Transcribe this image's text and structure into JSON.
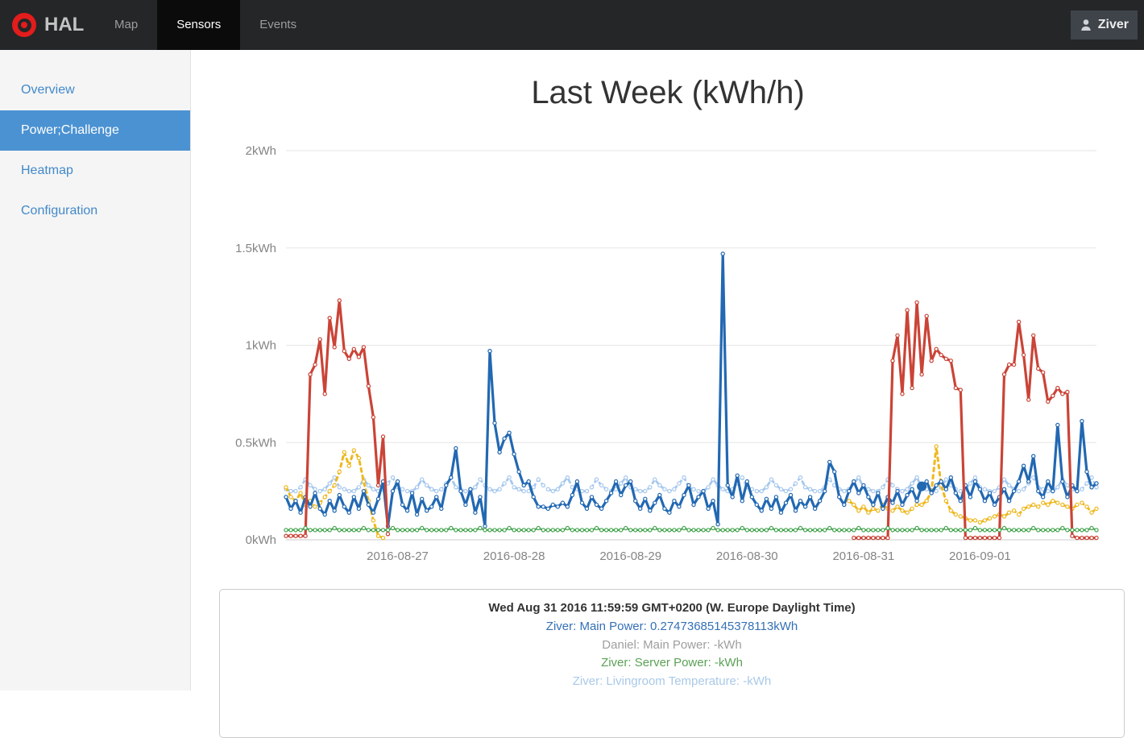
{
  "navbar": {
    "brand": "HAL",
    "items": [
      {
        "label": "Map",
        "active": false
      },
      {
        "label": "Sensors",
        "active": true
      },
      {
        "label": "Events",
        "active": false
      }
    ],
    "user": {
      "label": "Ziver"
    }
  },
  "sidebar": {
    "items": [
      {
        "label": "Overview",
        "active": false
      },
      {
        "label": "Power;Challenge",
        "active": true
      },
      {
        "label": "Heatmap",
        "active": false
      },
      {
        "label": "Configuration",
        "active": false
      }
    ]
  },
  "chart_data": {
    "type": "line",
    "title": "Last Week (kWh/h)",
    "xlabel": "",
    "ylabel": "",
    "grid": true,
    "legend_position": "none",
    "ylim": [
      0,
      2
    ],
    "y_ticks": [
      "0kWh",
      "0.5kWh",
      "1kWh",
      "1.5kWh",
      "2kWh"
    ],
    "y_tick_values": [
      0,
      0.5,
      1,
      1.5,
      2
    ],
    "x_tick_labels": [
      "2016-08-27",
      "2016-08-28",
      "2016-08-29",
      "2016-08-30",
      "2016-08-31",
      "2016-09-01"
    ],
    "x_tick_hours": [
      23,
      47,
      71,
      95,
      119,
      143
    ],
    "hours_total": 168,
    "x_unit": "hour",
    "draw_order": [
      3,
      4,
      0,
      1,
      2
    ],
    "highlight": {
      "series_index": 0,
      "hour": 131,
      "value": 0.27473685145378113
    },
    "series": [
      {
        "name": "Ziver: Main Power",
        "color": "#2268b2",
        "line": "solid",
        "width": 3.2,
        "segments": [
          {
            "start": 0,
            "values": [
              0.22,
              0.16,
              0.2,
              0.14,
              0.22,
              0.17,
              0.24,
              0.16,
              0.13,
              0.2,
              0.15,
              0.23,
              0.17,
              0.14,
              0.22,
              0.16,
              0.25,
              0.18,
              0.14,
              0.21,
              0.3,
              0.07,
              0.25,
              0.3,
              0.18,
              0.15,
              0.24,
              0.13,
              0.21,
              0.15,
              0.17,
              0.22,
              0.16,
              0.28,
              0.32,
              0.47,
              0.25,
              0.18,
              0.26,
              0.14,
              0.22,
              0.07,
              0.97,
              0.6,
              0.45,
              0.52,
              0.55,
              0.44,
              0.35,
              0.28,
              0.3,
              0.22,
              0.17,
              0.17,
              0.16,
              0.18,
              0.17,
              0.19,
              0.17,
              0.23,
              0.3,
              0.19,
              0.16,
              0.22,
              0.18,
              0.16,
              0.2,
              0.24,
              0.3,
              0.23,
              0.28,
              0.3,
              0.2,
              0.16,
              0.21,
              0.15,
              0.19,
              0.23,
              0.16,
              0.14,
              0.2,
              0.17,
              0.23,
              0.28,
              0.18,
              0.22,
              0.25,
              0.16,
              0.2,
              0.08,
              1.47,
              0.28,
              0.22,
              0.33,
              0.2,
              0.3,
              0.22,
              0.18,
              0.15,
              0.21,
              0.16,
              0.22,
              0.14,
              0.19,
              0.23,
              0.15,
              0.2,
              0.17,
              0.22,
              0.16,
              0.2,
              0.25,
              0.4,
              0.35,
              0.22,
              0.18,
              0.25,
              0.3,
              0.24,
              0.28,
              0.22,
              0.18,
              0.24,
              0.16,
              0.22,
              0.19,
              0.25,
              0.18,
              0.23,
              0.26,
              0.2,
              0.2747,
              0.3,
              0.24,
              0.28,
              0.3,
              0.26,
              0.32,
              0.24,
              0.2,
              0.28,
              0.22,
              0.3,
              0.26,
              0.2,
              0.24,
              0.18,
              0.22,
              0.26,
              0.2,
              0.25,
              0.3,
              0.38,
              0.3,
              0.43,
              0.25,
              0.22,
              0.3,
              0.25,
              0.59,
              0.3,
              0.22,
              0.28,
              0.25,
              0.61,
              0.35,
              0.27,
              0.29
            ]
          }
        ]
      },
      {
        "name": "Daniel: Main Power",
        "color": "#ca4437",
        "line": "solid",
        "width": 3.2,
        "segments": [
          {
            "start": 0,
            "values": [
              0.02,
              0.02,
              0.02,
              0.02,
              0.02,
              0.85,
              0.9,
              1.03,
              0.75,
              1.14,
              0.99,
              1.23,
              0.97,
              0.93,
              0.98,
              0.94,
              0.99,
              0.79,
              0.63,
              0.28,
              0.53,
              0.03
            ]
          },
          {
            "start": 117,
            "values": [
              0.01,
              0.01,
              0.01,
              0.01,
              0.01,
              0.01,
              0.01,
              0.01,
              0.92,
              1.05,
              0.75,
              1.18,
              0.78,
              1.22,
              0.85,
              1.15,
              0.92,
              0.98,
              0.95,
              0.93,
              0.92,
              0.78,
              0.77,
              0.01,
              0.01,
              0.01,
              0.01,
              0.01,
              0.01,
              0.01,
              0.01,
              0.85,
              0.9,
              0.9,
              1.12,
              0.95,
              0.72,
              1.05,
              0.88,
              0.86,
              0.71,
              0.74,
              0.78,
              0.75,
              0.76,
              0.02,
              0.01,
              0.01,
              0.01,
              0.01,
              0.01
            ]
          }
        ]
      },
      {
        "name": "Ziver: Server Power",
        "color": "#44a44e",
        "line": "solid",
        "width": 2.2,
        "segments": [
          {
            "start": 0,
            "pattern": [
              0.05,
              0.05,
              0.05,
              0.05,
              0.06,
              0.05
            ],
            "repeat": 28
          }
        ]
      },
      {
        "name": "Ziver: Livingroom Temperature",
        "color": "#a6c8ee",
        "line": "dashed",
        "width": 2.8,
        "segments": [
          {
            "start": 0,
            "pattern": [
              0.26,
              0.25,
              0.25,
              0.27,
              0.31,
              0.28,
              0.26,
              0.25,
              0.26,
              0.29,
              0.32,
              0.27
            ],
            "repeat": 14
          }
        ]
      },
      {
        "name": "",
        "color": "#eeb81e",
        "line": "dashed",
        "width": 3,
        "segments": [
          {
            "start": 0,
            "values": [
              0.27,
              0.22,
              0.2,
              0.24,
              0.18,
              0.2,
              0.17,
              0.19,
              0.22,
              0.25,
              0.28,
              0.35,
              0.45,
              0.38,
              0.46,
              0.42,
              0.3,
              0.2,
              0.1,
              0.02,
              0.01
            ]
          },
          {
            "start": 116,
            "values": [
              0.2,
              0.18,
              0.15,
              0.17,
              0.14,
              0.16,
              0.15,
              0.18,
              0.16,
              0.15,
              0.17,
              0.15,
              0.14,
              0.16,
              0.18,
              0.18,
              0.2,
              0.25,
              0.48,
              0.28,
              0.2,
              0.15,
              0.13,
              0.12,
              0.11,
              0.1,
              0.1,
              0.09,
              0.1,
              0.11,
              0.12,
              0.13,
              0.12,
              0.14,
              0.15,
              0.13,
              0.16,
              0.17,
              0.18,
              0.17,
              0.19,
              0.18,
              0.2,
              0.19,
              0.18,
              0.17,
              0.16,
              0.18,
              0.19,
              0.17,
              0.14,
              0.16
            ]
          }
        ]
      }
    ]
  },
  "tooltip": {
    "timestamp": "Wed Aug 31 2016 11:59:59 GMT+0200 (W. Europe Daylight Time)",
    "entries": [
      {
        "label": "Ziver: Main Power",
        "value": "0.27473685145378113kWh",
        "color": "#3470b5",
        "text": "Ziver: Main Power: 0.27473685145378113kWh"
      },
      {
        "label": "Daniel: Main Power",
        "value": "-kWh",
        "color": "#9e9e9e",
        "text": "Daniel: Main Power: -kWh"
      },
      {
        "label": "Ziver: Server Power",
        "value": "-kWh",
        "color": "#5ba156",
        "text": "Ziver: Server Power: -kWh"
      },
      {
        "label": "Ziver: Livingroom Temperature",
        "value": "-kWh",
        "color": "#a9c9e8",
        "text": "Ziver: Livingroom Temperature: -kWh"
      }
    ]
  }
}
